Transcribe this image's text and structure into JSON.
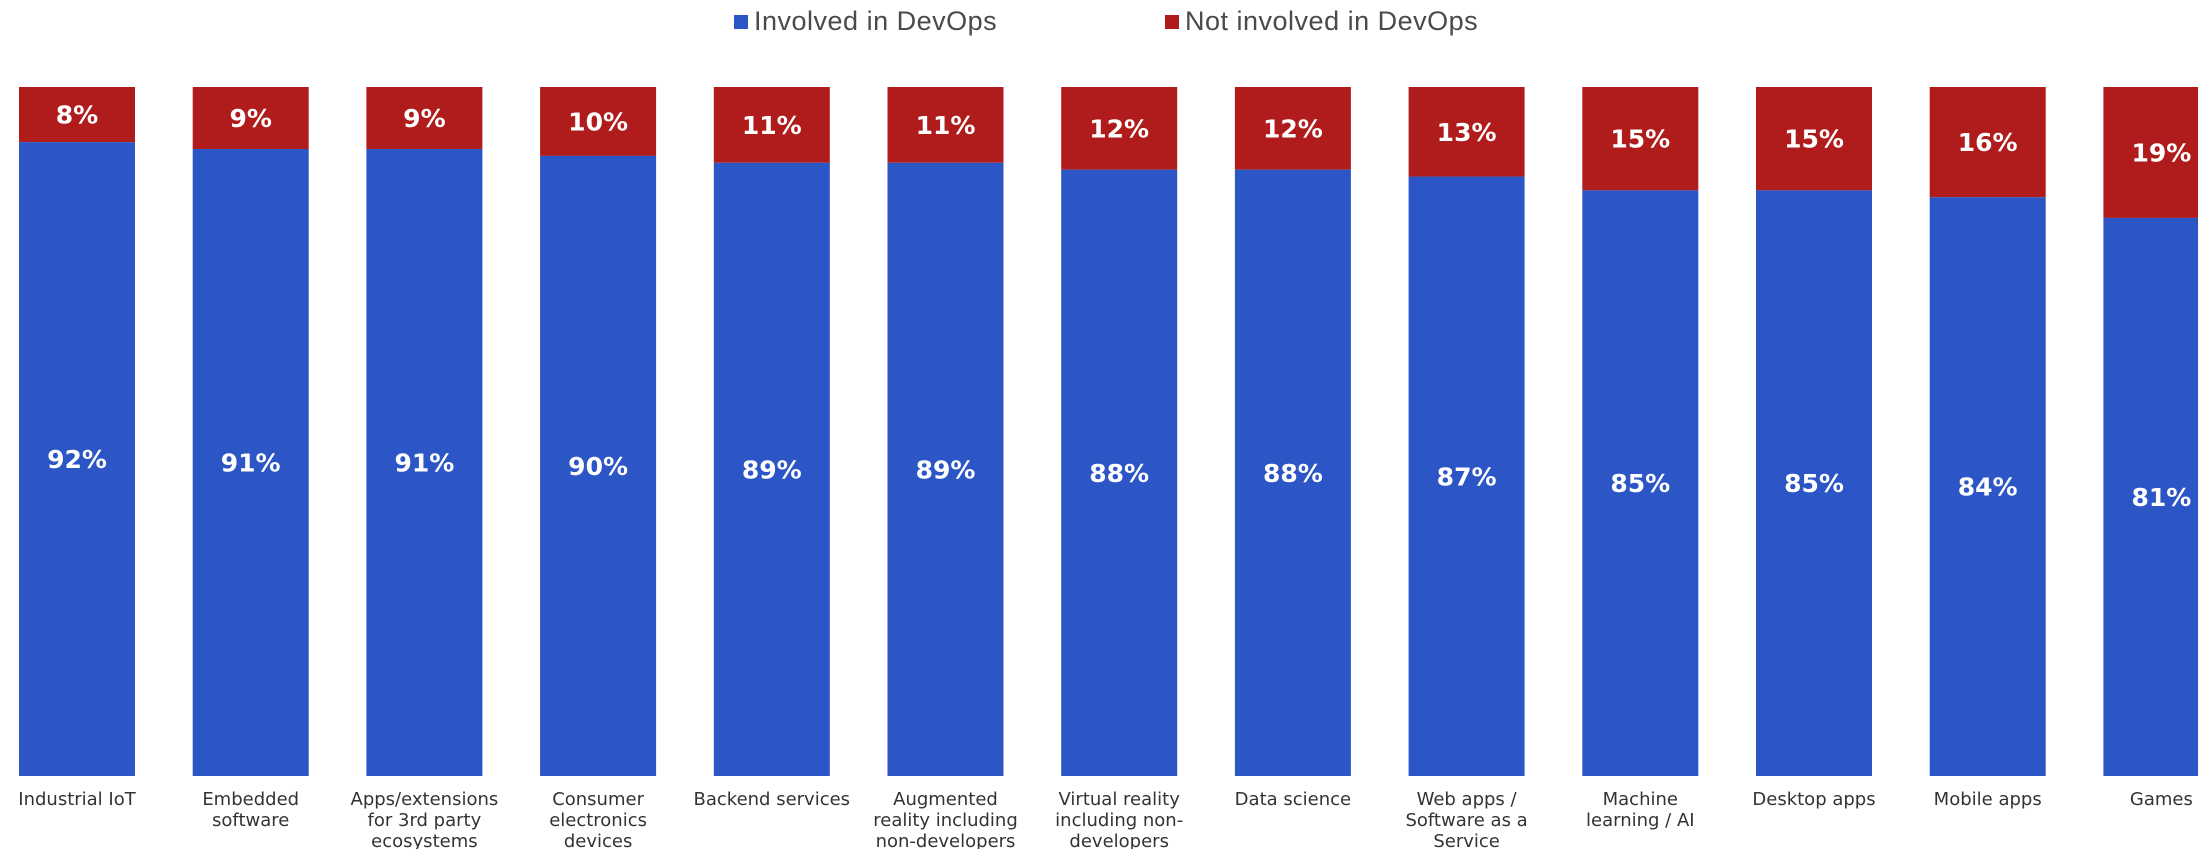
{
  "chart_data": {
    "type": "bar",
    "stacked": true,
    "categories": [
      "Industrial IoT",
      "Embedded software",
      "Apps/extensions for 3rd party ecosystems",
      "Consumer electronics devices",
      "Backend services",
      "Augmented reality including non-developers",
      "Virtual reality including non-developers",
      "Data science",
      "Web apps / Software as a Service",
      "Machine learning / AI",
      "Desktop apps",
      "Mobile apps",
      "Games"
    ],
    "category_lines": [
      [
        "Industrial IoT"
      ],
      [
        "Embedded",
        "software"
      ],
      [
        "Apps/extensions",
        "for 3rd party",
        "ecosystems"
      ],
      [
        "Consumer",
        "electronics",
        "devices"
      ],
      [
        "Backend services"
      ],
      [
        "Augmented",
        "reality including",
        "non-developers"
      ],
      [
        "Virtual reality",
        "including non-",
        "developers"
      ],
      [
        "Data science"
      ],
      [
        "Web apps /",
        "Software as a",
        "Service"
      ],
      [
        "Machine",
        "learning / AI"
      ],
      [
        "Desktop apps"
      ],
      [
        "Mobile apps"
      ],
      [
        "Games"
      ]
    ],
    "series": [
      {
        "name": "Involved in DevOps",
        "color": "#2c56c6",
        "values": [
          92,
          91,
          91,
          90,
          89,
          89,
          88,
          88,
          87,
          85,
          85,
          84,
          81
        ],
        "labels": [
          "92%",
          "91%",
          "91%",
          "90%",
          "89%",
          "89%",
          "88%",
          "88%",
          "87%",
          "85%",
          "85%",
          "84%",
          "81%"
        ]
      },
      {
        "name": "Not involved in DevOps",
        "color": "#b01c1c",
        "values": [
          8,
          9,
          9,
          10,
          11,
          11,
          12,
          12,
          13,
          15,
          15,
          16,
          19
        ],
        "labels": [
          "8%",
          "9%",
          "9%",
          "10%",
          "11%",
          "11%",
          "12%",
          "12%",
          "13%",
          "15%",
          "15%",
          "16%",
          "19%"
        ]
      }
    ],
    "ylim": [
      0,
      100
    ],
    "grid": false,
    "legend_position": "top-center"
  }
}
